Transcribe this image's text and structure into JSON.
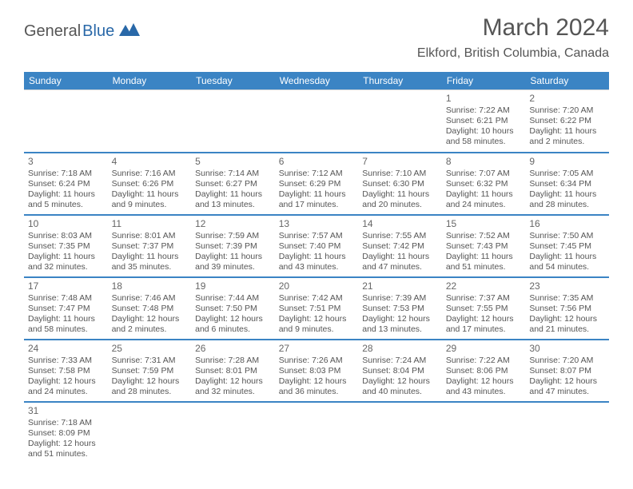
{
  "logo": {
    "text1": "General",
    "text2": "Blue"
  },
  "title": "March 2024",
  "location": "Elkford, British Columbia, Canada",
  "colors": {
    "header_bg": "#3b84c4",
    "header_text": "#ffffff",
    "row_divider": "#3b84c4",
    "cell_border": "#d8d8d8",
    "text": "#555555",
    "logo_blue": "#2968a8"
  },
  "weekdays": [
    "Sunday",
    "Monday",
    "Tuesday",
    "Wednesday",
    "Thursday",
    "Friday",
    "Saturday"
  ],
  "weeks": [
    [
      null,
      null,
      null,
      null,
      null,
      {
        "n": "1",
        "sr": "Sunrise: 7:22 AM",
        "ss": "Sunset: 6:21 PM",
        "d1": "Daylight: 10 hours",
        "d2": "and 58 minutes."
      },
      {
        "n": "2",
        "sr": "Sunrise: 7:20 AM",
        "ss": "Sunset: 6:22 PM",
        "d1": "Daylight: 11 hours",
        "d2": "and 2 minutes."
      }
    ],
    [
      {
        "n": "3",
        "sr": "Sunrise: 7:18 AM",
        "ss": "Sunset: 6:24 PM",
        "d1": "Daylight: 11 hours",
        "d2": "and 5 minutes."
      },
      {
        "n": "4",
        "sr": "Sunrise: 7:16 AM",
        "ss": "Sunset: 6:26 PM",
        "d1": "Daylight: 11 hours",
        "d2": "and 9 minutes."
      },
      {
        "n": "5",
        "sr": "Sunrise: 7:14 AM",
        "ss": "Sunset: 6:27 PM",
        "d1": "Daylight: 11 hours",
        "d2": "and 13 minutes."
      },
      {
        "n": "6",
        "sr": "Sunrise: 7:12 AM",
        "ss": "Sunset: 6:29 PM",
        "d1": "Daylight: 11 hours",
        "d2": "and 17 minutes."
      },
      {
        "n": "7",
        "sr": "Sunrise: 7:10 AM",
        "ss": "Sunset: 6:30 PM",
        "d1": "Daylight: 11 hours",
        "d2": "and 20 minutes."
      },
      {
        "n": "8",
        "sr": "Sunrise: 7:07 AM",
        "ss": "Sunset: 6:32 PM",
        "d1": "Daylight: 11 hours",
        "d2": "and 24 minutes."
      },
      {
        "n": "9",
        "sr": "Sunrise: 7:05 AM",
        "ss": "Sunset: 6:34 PM",
        "d1": "Daylight: 11 hours",
        "d2": "and 28 minutes."
      }
    ],
    [
      {
        "n": "10",
        "sr": "Sunrise: 8:03 AM",
        "ss": "Sunset: 7:35 PM",
        "d1": "Daylight: 11 hours",
        "d2": "and 32 minutes."
      },
      {
        "n": "11",
        "sr": "Sunrise: 8:01 AM",
        "ss": "Sunset: 7:37 PM",
        "d1": "Daylight: 11 hours",
        "d2": "and 35 minutes."
      },
      {
        "n": "12",
        "sr": "Sunrise: 7:59 AM",
        "ss": "Sunset: 7:39 PM",
        "d1": "Daylight: 11 hours",
        "d2": "and 39 minutes."
      },
      {
        "n": "13",
        "sr": "Sunrise: 7:57 AM",
        "ss": "Sunset: 7:40 PM",
        "d1": "Daylight: 11 hours",
        "d2": "and 43 minutes."
      },
      {
        "n": "14",
        "sr": "Sunrise: 7:55 AM",
        "ss": "Sunset: 7:42 PM",
        "d1": "Daylight: 11 hours",
        "d2": "and 47 minutes."
      },
      {
        "n": "15",
        "sr": "Sunrise: 7:52 AM",
        "ss": "Sunset: 7:43 PM",
        "d1": "Daylight: 11 hours",
        "d2": "and 51 minutes."
      },
      {
        "n": "16",
        "sr": "Sunrise: 7:50 AM",
        "ss": "Sunset: 7:45 PM",
        "d1": "Daylight: 11 hours",
        "d2": "and 54 minutes."
      }
    ],
    [
      {
        "n": "17",
        "sr": "Sunrise: 7:48 AM",
        "ss": "Sunset: 7:47 PM",
        "d1": "Daylight: 11 hours",
        "d2": "and 58 minutes."
      },
      {
        "n": "18",
        "sr": "Sunrise: 7:46 AM",
        "ss": "Sunset: 7:48 PM",
        "d1": "Daylight: 12 hours",
        "d2": "and 2 minutes."
      },
      {
        "n": "19",
        "sr": "Sunrise: 7:44 AM",
        "ss": "Sunset: 7:50 PM",
        "d1": "Daylight: 12 hours",
        "d2": "and 6 minutes."
      },
      {
        "n": "20",
        "sr": "Sunrise: 7:42 AM",
        "ss": "Sunset: 7:51 PM",
        "d1": "Daylight: 12 hours",
        "d2": "and 9 minutes."
      },
      {
        "n": "21",
        "sr": "Sunrise: 7:39 AM",
        "ss": "Sunset: 7:53 PM",
        "d1": "Daylight: 12 hours",
        "d2": "and 13 minutes."
      },
      {
        "n": "22",
        "sr": "Sunrise: 7:37 AM",
        "ss": "Sunset: 7:55 PM",
        "d1": "Daylight: 12 hours",
        "d2": "and 17 minutes."
      },
      {
        "n": "23",
        "sr": "Sunrise: 7:35 AM",
        "ss": "Sunset: 7:56 PM",
        "d1": "Daylight: 12 hours",
        "d2": "and 21 minutes."
      }
    ],
    [
      {
        "n": "24",
        "sr": "Sunrise: 7:33 AM",
        "ss": "Sunset: 7:58 PM",
        "d1": "Daylight: 12 hours",
        "d2": "and 24 minutes."
      },
      {
        "n": "25",
        "sr": "Sunrise: 7:31 AM",
        "ss": "Sunset: 7:59 PM",
        "d1": "Daylight: 12 hours",
        "d2": "and 28 minutes."
      },
      {
        "n": "26",
        "sr": "Sunrise: 7:28 AM",
        "ss": "Sunset: 8:01 PM",
        "d1": "Daylight: 12 hours",
        "d2": "and 32 minutes."
      },
      {
        "n": "27",
        "sr": "Sunrise: 7:26 AM",
        "ss": "Sunset: 8:03 PM",
        "d1": "Daylight: 12 hours",
        "d2": "and 36 minutes."
      },
      {
        "n": "28",
        "sr": "Sunrise: 7:24 AM",
        "ss": "Sunset: 8:04 PM",
        "d1": "Daylight: 12 hours",
        "d2": "and 40 minutes."
      },
      {
        "n": "29",
        "sr": "Sunrise: 7:22 AM",
        "ss": "Sunset: 8:06 PM",
        "d1": "Daylight: 12 hours",
        "d2": "and 43 minutes."
      },
      {
        "n": "30",
        "sr": "Sunrise: 7:20 AM",
        "ss": "Sunset: 8:07 PM",
        "d1": "Daylight: 12 hours",
        "d2": "and 47 minutes."
      }
    ],
    [
      {
        "n": "31",
        "sr": "Sunrise: 7:18 AM",
        "ss": "Sunset: 8:09 PM",
        "d1": "Daylight: 12 hours",
        "d2": "and 51 minutes."
      },
      null,
      null,
      null,
      null,
      null,
      null
    ]
  ]
}
